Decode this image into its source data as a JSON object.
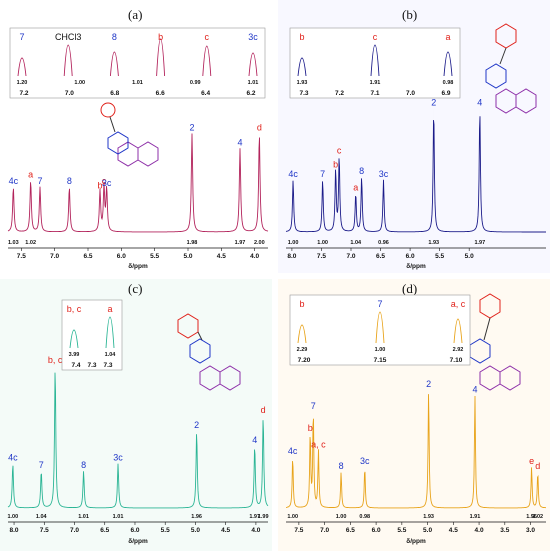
{
  "figure": {
    "panel_labels": [
      "(a)",
      "(b)",
      "(c)",
      "(d)"
    ]
  },
  "colors": {
    "a": "#b3245c",
    "b": "#1c1c8a",
    "c": "#2bb595",
    "d": "#e8a31a",
    "red_label": "#e0221b",
    "blue_label": "#1f36c7",
    "purple_mol": "#8d2fa8"
  },
  "chart_data": [
    {
      "panel": "(a)",
      "type": "line",
      "xlabel": "δ/ppm",
      "xlim": [
        7.7,
        3.8
      ],
      "xticks": [
        "7.5",
        "7.0",
        "6.5",
        "6.0",
        "5.5",
        "5.0",
        "4.5",
        "4.0"
      ],
      "peaks": [
        {
          "label": "4c",
          "ppm": 7.62,
          "h": 0.42,
          "integral": "1.03"
        },
        {
          "label": "a",
          "ppm": 7.36,
          "h": 0.48,
          "integral": "1.02"
        },
        {
          "label": "7",
          "ppm": 7.22,
          "h": 0.42,
          "integral": ""
        },
        {
          "label": "8",
          "ppm": 6.78,
          "h": 0.42,
          "integral": ""
        },
        {
          "label": "b",
          "ppm": 6.32,
          "h": 0.38,
          "integral": ""
        },
        {
          "label": "c",
          "ppm": 6.26,
          "h": 0.42,
          "integral": ""
        },
        {
          "label": "3c",
          "ppm": 6.22,
          "h": 0.4,
          "integral": ""
        },
        {
          "label": "2",
          "ppm": 4.94,
          "h": 0.92,
          "integral": "1.98"
        },
        {
          "label": "4",
          "ppm": 4.22,
          "h": 0.78,
          "integral": "1.97"
        },
        {
          "label": "d",
          "ppm": 3.93,
          "h": 0.92,
          "integral": "2.00"
        }
      ],
      "inset": {
        "xticks": [
          "7.2",
          "7.0",
          "6.8",
          "6.6",
          "6.4",
          "6.2"
        ],
        "integrals": [
          "1.20",
          "1.00",
          "1.01",
          "0.99",
          "1.01"
        ],
        "labels": [
          "7",
          "CHCl3",
          "8",
          "b",
          "c",
          "3c"
        ]
      }
    },
    {
      "panel": "(b)",
      "type": "line",
      "xlabel": "δ/ppm",
      "xlim": [
        8.1,
        3.7
      ],
      "xticks": [
        "8.0",
        "7.5",
        "7.0",
        "6.5",
        "6.0",
        "5.5",
        "5.0"
      ],
      "peaks": [
        {
          "label": "4c",
          "ppm": 7.98,
          "h": 0.38,
          "integral": "1.00"
        },
        {
          "label": "7",
          "ppm": 7.48,
          "h": 0.38,
          "integral": "1.00"
        },
        {
          "label": "b",
          "ppm": 7.26,
          "h": 0.45,
          "integral": ""
        },
        {
          "label": "c",
          "ppm": 7.2,
          "h": 0.55,
          "integral": ""
        },
        {
          "label": "a",
          "ppm": 6.92,
          "h": 0.28,
          "integral": "1.04"
        },
        {
          "label": "8",
          "ppm": 6.82,
          "h": 0.4,
          "integral": ""
        },
        {
          "label": "3c",
          "ppm": 6.45,
          "h": 0.38,
          "integral": "0.96"
        },
        {
          "label": "2",
          "ppm": 5.6,
          "h": 0.9,
          "integral": "1.93"
        },
        {
          "label": "4",
          "ppm": 4.82,
          "h": 0.9,
          "integral": "1.97"
        }
      ],
      "inset": {
        "xticks": [
          "7.3",
          "7.2",
          "7.1",
          "7.0",
          "6.9"
        ],
        "integrals": [
          "1.93",
          "1.91",
          "0.98"
        ],
        "labels": [
          "b",
          "c",
          "a"
        ]
      }
    },
    {
      "panel": "(c)",
      "type": "line",
      "xlabel": "δ/ppm",
      "xlim": [
        8.1,
        3.8
      ],
      "xticks": [
        "8.0",
        "7.5",
        "7.0",
        "6.5",
        "6.0",
        "5.5",
        "5.0",
        "4.5",
        "4.0"
      ],
      "peaks": [
        {
          "label": "4c",
          "ppm": 8.02,
          "h": 0.3,
          "integral": "1.00"
        },
        {
          "label": "7",
          "ppm": 7.55,
          "h": 0.25,
          "integral": "1.04"
        },
        {
          "label": "b, c",
          "ppm": 7.32,
          "h": 0.96,
          "integral": ""
        },
        {
          "label": "8",
          "ppm": 6.85,
          "h": 0.25,
          "integral": "1.01"
        },
        {
          "label": "3c",
          "ppm": 6.28,
          "h": 0.3,
          "integral": "1.01"
        },
        {
          "label": "2",
          "ppm": 4.98,
          "h": 0.52,
          "integral": "1.96"
        },
        {
          "label": "4",
          "ppm": 4.02,
          "h": 0.42,
          "integral": "1.97"
        },
        {
          "label": "d",
          "ppm": 3.88,
          "h": 0.62,
          "integral": "1.99"
        }
      ],
      "inset": {
        "xticks": [
          "7.4",
          "7.3",
          "7.3"
        ],
        "integrals": [
          "3.99",
          "1.04"
        ],
        "labels": [
          "b, c",
          "a"
        ]
      }
    },
    {
      "panel": "(d)",
      "type": "line",
      "xlabel": "δ/ppm",
      "xlim": [
        7.75,
        2.7
      ],
      "xticks": [
        "7.5",
        "7.0",
        "6.5",
        "6.0",
        "5.5",
        "5.0",
        "4.5",
        "4.0",
        "3.5",
        "3.0"
      ],
      "peaks": [
        {
          "label": "4c",
          "ppm": 7.62,
          "h": 0.4,
          "integral": "1.00"
        },
        {
          "label": "b",
          "ppm": 7.28,
          "h": 0.58,
          "integral": ""
        },
        {
          "label": "7",
          "ppm": 7.22,
          "h": 0.75,
          "integral": ""
        },
        {
          "label": "a, c",
          "ppm": 7.12,
          "h": 0.45,
          "integral": ""
        },
        {
          "label": "8",
          "ppm": 6.68,
          "h": 0.28,
          "integral": "1.00"
        },
        {
          "label": "3c",
          "ppm": 6.22,
          "h": 0.32,
          "integral": "0.98"
        },
        {
          "label": "2",
          "ppm": 4.98,
          "h": 0.92,
          "integral": "1.93"
        },
        {
          "label": "4",
          "ppm": 4.08,
          "h": 0.88,
          "integral": "1.91"
        },
        {
          "label": "e",
          "ppm": 2.98,
          "h": 0.32,
          "integral": "1.96"
        },
        {
          "label": "d",
          "ppm": 2.86,
          "h": 0.28,
          "integral": "2.02"
        }
      ],
      "inset": {
        "xticks": [
          "7.20",
          "7.15",
          "7.10"
        ],
        "integrals": [
          "2.29",
          "1.00",
          "2.92"
        ],
        "labels": [
          "b",
          "7",
          "a, c"
        ]
      }
    }
  ]
}
